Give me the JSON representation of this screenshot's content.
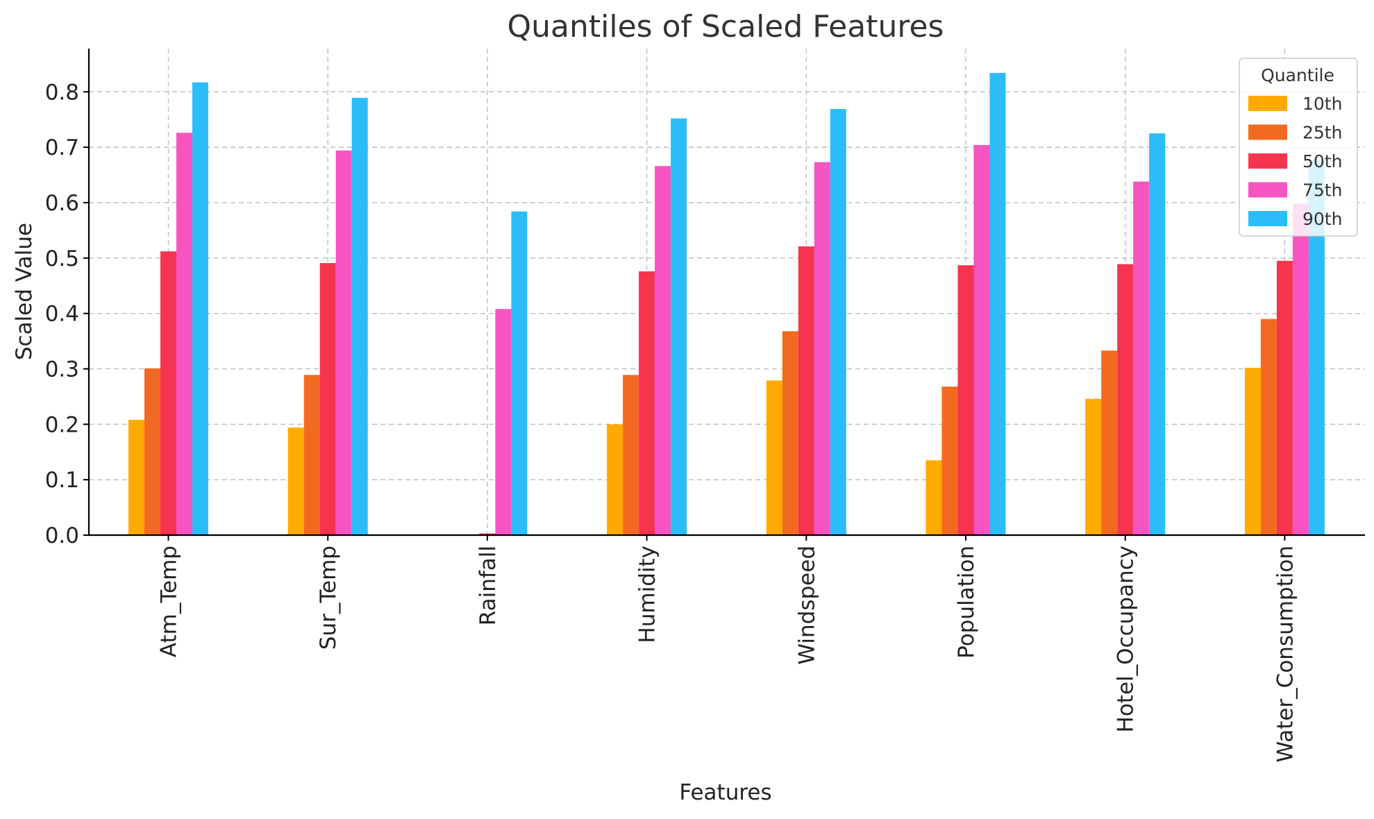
{
  "chart_data": {
    "type": "bar",
    "title": "Quantiles of Scaled Features",
    "xlabel": "Features",
    "ylabel": "Scaled Value",
    "ylim": [
      0,
      0.878
    ],
    "yticks": [
      0.0,
      0.1,
      0.2,
      0.3,
      0.4,
      0.5,
      0.6,
      0.7,
      0.8
    ],
    "ytick_labels": [
      "0.0",
      "0.1",
      "0.2",
      "0.3",
      "0.4",
      "0.5",
      "0.6",
      "0.7",
      "0.8"
    ],
    "grid": true,
    "legend": {
      "title": "Quantile",
      "placement": "top-right"
    },
    "categories": [
      "Atm_Temp",
      "Sur_Temp",
      "Rainfall",
      "Humidity",
      "Windspeed",
      "Population",
      "Hotel_Occupancy",
      "Water_Consumption"
    ],
    "series": [
      {
        "name": "10th",
        "color": "#FFAA00",
        "values": [
          0.208,
          0.194,
          0.0,
          0.2,
          0.279,
          0.135,
          0.246,
          0.302
        ]
      },
      {
        "name": "25th",
        "color": "#F26A22",
        "values": [
          0.301,
          0.289,
          0.0,
          0.289,
          0.368,
          0.268,
          0.333,
          0.39
        ]
      },
      {
        "name": "50th",
        "color": "#F5344F",
        "values": [
          0.512,
          0.491,
          0.003,
          0.476,
          0.521,
          0.487,
          0.489,
          0.495
        ]
      },
      {
        "name": "75th",
        "color": "#F654C1",
        "values": [
          0.726,
          0.694,
          0.408,
          0.666,
          0.673,
          0.704,
          0.638,
          0.598
        ]
      },
      {
        "name": "90th",
        "color": "#2BBDF7",
        "values": [
          0.817,
          0.789,
          0.584,
          0.752,
          0.769,
          0.834,
          0.725,
          0.677
        ]
      }
    ]
  }
}
